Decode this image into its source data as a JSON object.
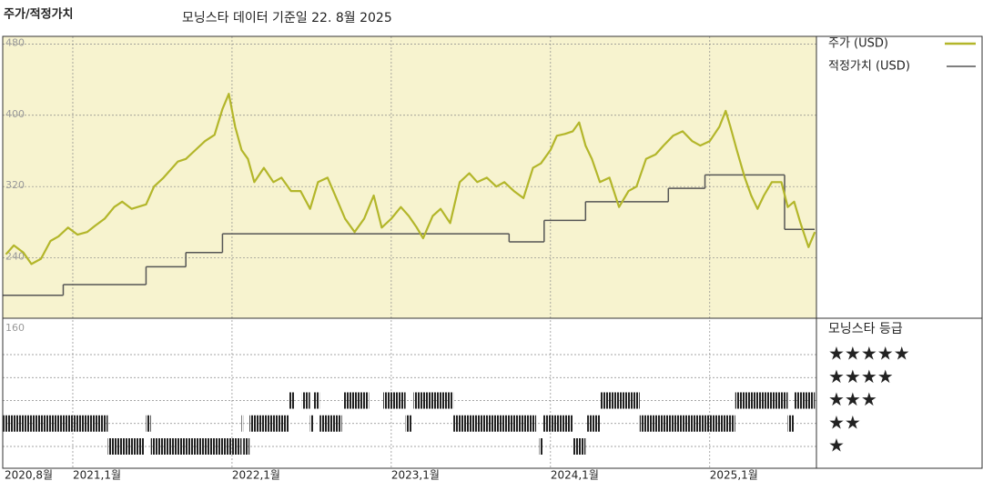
{
  "chart_data": {
    "type": "line",
    "title": "주가/적정가치",
    "subtitle": "모닝스타 데이터 기준일 22. 8월 2025",
    "xlim": [
      2020.56,
      2025.67
    ],
    "xticks": [
      {
        "value": 2020.58,
        "label": "2020,8월"
      },
      {
        "value": 2021.0,
        "label": "2021,1월"
      },
      {
        "value": 2022.0,
        "label": "2022,1월"
      },
      {
        "value": 2023.0,
        "label": "2023,1월"
      },
      {
        "value": 2024.0,
        "label": "2024,1월"
      },
      {
        "value": 2025.0,
        "label": "2025,1월"
      }
    ],
    "ylim": [
      160,
      488
    ],
    "yticks": [
      160,
      240,
      320,
      400,
      480
    ],
    "grid": true,
    "series": [
      {
        "name": "주가 (USD)",
        "color": "#b3b62a",
        "x": [
          2020.58,
          2020.63,
          2020.69,
          2020.74,
          2020.8,
          2020.86,
          2020.91,
          2020.97,
          2021.03,
          2021.09,
          2021.14,
          2021.2,
          2021.26,
          2021.31,
          2021.37,
          2021.46,
          2021.51,
          2021.57,
          2021.66,
          2021.71,
          2021.77,
          2021.83,
          2021.89,
          2021.94,
          2021.98,
          2022.02,
          2022.06,
          2022.1,
          2022.14,
          2022.2,
          2022.26,
          2022.31,
          2022.37,
          2022.43,
          2022.49,
          2022.54,
          2022.6,
          2022.66,
          2022.71,
          2022.77,
          2022.83,
          2022.89,
          2022.94,
          2023.0,
          2023.06,
          2023.11,
          2023.16,
          2023.2,
          2023.26,
          2023.31,
          2023.37,
          2023.43,
          2023.49,
          2023.54,
          2023.6,
          2023.66,
          2023.71,
          2023.77,
          2023.83,
          2023.89,
          2023.94,
          2024.0,
          2024.04,
          2024.09,
          2024.14,
          2024.18,
          2024.22,
          2024.26,
          2024.31,
          2024.37,
          2024.43,
          2024.49,
          2024.54,
          2024.6,
          2024.66,
          2024.71,
          2024.77,
          2024.83,
          2024.89,
          2024.94,
          2025.0,
          2025.06,
          2025.1,
          2025.13,
          2025.17,
          2025.22,
          2025.26,
          2025.3,
          2025.34,
          2025.39,
          2025.45,
          2025.49,
          2025.53,
          2025.57,
          2025.62,
          2025.66
        ],
        "values": [
          244,
          254,
          246,
          233,
          239,
          259,
          264,
          274,
          266,
          269,
          276,
          284,
          297,
          303,
          295,
          300,
          320,
          330,
          348,
          351,
          361,
          371,
          378,
          407,
          424,
          387,
          361,
          351,
          325,
          341,
          325,
          330,
          315,
          315,
          295,
          325,
          330,
          305,
          284,
          269,
          284,
          310,
          274,
          284,
          297,
          287,
          274,
          262,
          287,
          295,
          279,
          325,
          335,
          325,
          330,
          320,
          325,
          315,
          307,
          341,
          346,
          361,
          377,
          379,
          382,
          392,
          366,
          351,
          325,
          330,
          297,
          315,
          320,
          351,
          356,
          366,
          377,
          382,
          371,
          366,
          371,
          387,
          405,
          387,
          361,
          330,
          310,
          295,
          310,
          325,
          325,
          297,
          303,
          279,
          252,
          269
        ]
      },
      {
        "name": "적정가치 (USD)",
        "color": "#555555",
        "step": true,
        "x": [
          2020.56,
          2020.94,
          2021.46,
          2021.71,
          2021.94,
          2023.74,
          2023.96,
          2024.22,
          2024.74,
          2024.97,
          2025.47
        ],
        "values": [
          198,
          210,
          230,
          246,
          267,
          258,
          282,
          303,
          318,
          333,
          272
        ]
      }
    ],
    "rating_title": "모닝스타 등급",
    "rating_ticks": [
      {
        "value": 5,
        "label": "★★★★★"
      },
      {
        "value": 4,
        "label": "★★★★"
      },
      {
        "value": 3,
        "label": "★★★"
      },
      {
        "value": 2,
        "label": "★★"
      },
      {
        "value": 1,
        "label": "★"
      }
    ],
    "rating_periods": {
      "start": [
        2020.56,
        2021.22,
        2021.46,
        2021.49,
        2022.06,
        2022.07,
        2022.11,
        2022.36,
        2022.44,
        2022.49,
        2022.51,
        2022.55,
        2022.7,
        2022.95,
        2023.09,
        2023.14,
        2023.39,
        2023.93,
        2023.95,
        2024.14,
        2024.23,
        2024.31,
        2024.56,
        2025.16,
        2025.49,
        2025.53
      ],
      "end": [
        2021.22,
        2021.45,
        2021.49,
        2022.06,
        2022.07,
        2022.11,
        2022.36,
        2022.39,
        2022.49,
        2022.51,
        2022.55,
        2022.69,
        2022.86,
        2023.09,
        2023.13,
        2023.39,
        2023.91,
        2023.95,
        2024.14,
        2024.22,
        2024.31,
        2024.56,
        2025.16,
        2025.49,
        2025.53,
        2025.66
      ],
      "rating": [
        2,
        1,
        2,
        1,
        2,
        1,
        2,
        3,
        3,
        2,
        3,
        2,
        3,
        3,
        2,
        3,
        2,
        1,
        2,
        1,
        2,
        3,
        2,
        3,
        2,
        3
      ]
    }
  }
}
